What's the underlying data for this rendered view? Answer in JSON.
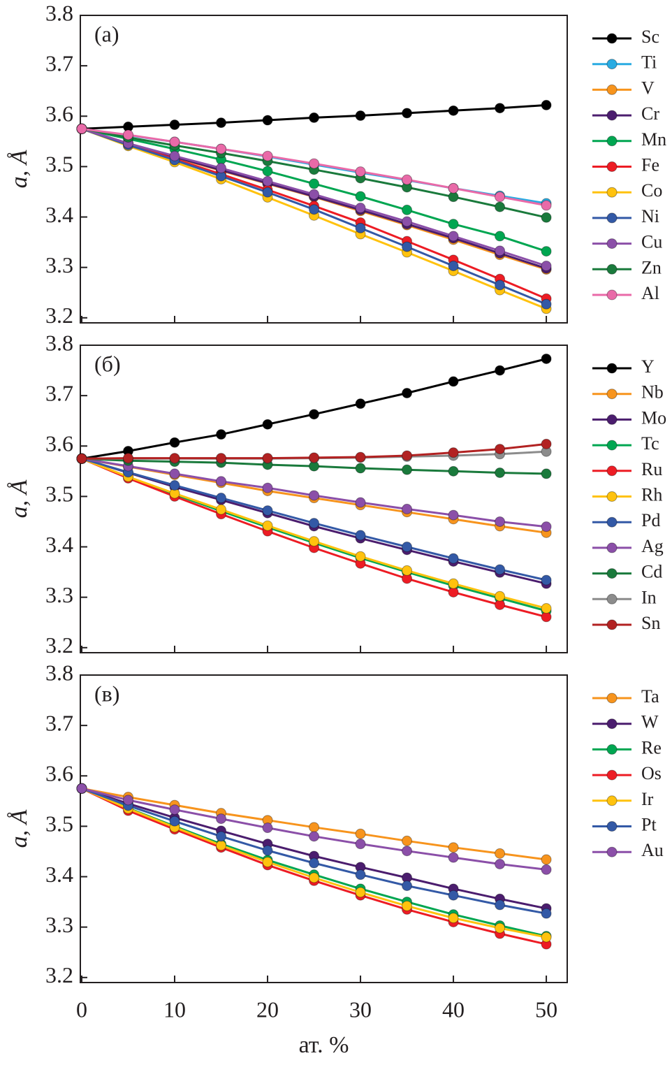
{
  "chart_data": [
    {
      "type": "line",
      "panel_label": "(а)",
      "ylabel": "a, Å",
      "x": [
        0,
        5,
        10,
        15,
        20,
        25,
        30,
        35,
        40,
        45,
        50
      ],
      "xlim": [
        -0.15,
        52.25
      ],
      "xticks": [
        0,
        10,
        20,
        30,
        40,
        50
      ],
      "ylim": [
        3.19,
        3.8
      ],
      "yticks": [
        3.2,
        3.3,
        3.4,
        3.5,
        3.6,
        3.7,
        3.8
      ],
      "series": [
        {
          "name": "Sc",
          "color": "#000000",
          "values": [
            3.575,
            3.579,
            3.583,
            3.587,
            3.592,
            3.597,
            3.601,
            3.606,
            3.611,
            3.616,
            3.622
          ]
        },
        {
          "name": "Ti",
          "color": "#29abe2",
          "values": [
            3.575,
            3.562,
            3.549,
            3.535,
            3.52,
            3.504,
            3.488,
            3.473,
            3.457,
            3.442,
            3.427
          ]
        },
        {
          "name": "V",
          "color": "#f7941d",
          "values": [
            3.575,
            3.545,
            3.518,
            3.492,
            3.466,
            3.44,
            3.412,
            3.384,
            3.355,
            3.325,
            3.296
          ]
        },
        {
          "name": "Cr",
          "color": "#4b1d6e",
          "values": [
            3.575,
            3.546,
            3.519,
            3.493,
            3.467,
            3.441,
            3.414,
            3.386,
            3.358,
            3.328,
            3.298
          ]
        },
        {
          "name": "Mn",
          "color": "#00a651",
          "values": [
            3.575,
            3.555,
            3.535,
            3.514,
            3.491,
            3.466,
            3.441,
            3.414,
            3.386,
            3.362,
            3.332
          ]
        },
        {
          "name": "Fe",
          "color": "#ed1c24",
          "values": [
            3.575,
            3.545,
            3.515,
            3.485,
            3.454,
            3.422,
            3.389,
            3.352,
            3.315,
            3.277,
            3.238
          ]
        },
        {
          "name": "Co",
          "color": "#ffc20e",
          "values": [
            3.575,
            3.541,
            3.509,
            3.475,
            3.439,
            3.403,
            3.366,
            3.33,
            3.293,
            3.255,
            3.218
          ]
        },
        {
          "name": "Ni",
          "color": "#3359a6",
          "values": [
            3.575,
            3.543,
            3.513,
            3.481,
            3.449,
            3.415,
            3.378,
            3.341,
            3.303,
            3.265,
            3.227
          ]
        },
        {
          "name": "Cu",
          "color": "#8b4fa8",
          "values": [
            3.575,
            3.546,
            3.521,
            3.497,
            3.471,
            3.445,
            3.418,
            3.391,
            3.362,
            3.333,
            3.303
          ]
        },
        {
          "name": "Zn",
          "color": "#1a7a3c",
          "values": [
            3.575,
            3.558,
            3.542,
            3.527,
            3.511,
            3.494,
            3.477,
            3.459,
            3.44,
            3.42,
            3.399
          ]
        },
        {
          "name": "Al",
          "color": "#e96aa8",
          "values": [
            3.575,
            3.563,
            3.549,
            3.535,
            3.521,
            3.506,
            3.49,
            3.474,
            3.457,
            3.44,
            3.423
          ]
        }
      ]
    },
    {
      "type": "line",
      "panel_label": "(б)",
      "ylabel": "a, Å",
      "x": [
        0,
        5,
        10,
        15,
        20,
        25,
        30,
        35,
        40,
        45,
        50
      ],
      "xlim": [
        -0.15,
        52.25
      ],
      "xticks": [
        0,
        10,
        20,
        30,
        40,
        50
      ],
      "ylim": [
        3.19,
        3.8
      ],
      "yticks": [
        3.2,
        3.3,
        3.4,
        3.5,
        3.6,
        3.7,
        3.8
      ],
      "series": [
        {
          "name": "Y",
          "color": "#000000",
          "values": [
            3.575,
            3.59,
            3.607,
            3.623,
            3.643,
            3.663,
            3.684,
            3.705,
            3.728,
            3.75,
            3.773
          ]
        },
        {
          "name": "Nb",
          "color": "#f7941d",
          "values": [
            3.575,
            3.559,
            3.543,
            3.527,
            3.511,
            3.497,
            3.483,
            3.469,
            3.455,
            3.441,
            3.428
          ]
        },
        {
          "name": "Mo",
          "color": "#4b1d6e",
          "values": [
            3.575,
            3.547,
            3.519,
            3.493,
            3.467,
            3.441,
            3.417,
            3.394,
            3.371,
            3.349,
            3.327
          ]
        },
        {
          "name": "Tc",
          "color": "#00a651",
          "values": [
            3.575,
            3.538,
            3.504,
            3.471,
            3.439,
            3.408,
            3.378,
            3.35,
            3.323,
            3.298,
            3.273
          ]
        },
        {
          "name": "Ru",
          "color": "#ed1c24",
          "values": [
            3.575,
            3.536,
            3.5,
            3.465,
            3.431,
            3.398,
            3.367,
            3.337,
            3.31,
            3.285,
            3.261
          ]
        },
        {
          "name": "Rh",
          "color": "#ffc20e",
          "values": [
            3.575,
            3.539,
            3.506,
            3.474,
            3.442,
            3.411,
            3.381,
            3.353,
            3.327,
            3.302,
            3.278
          ]
        },
        {
          "name": "Pd",
          "color": "#3359a6",
          "values": [
            3.575,
            3.548,
            3.522,
            3.497,
            3.472,
            3.447,
            3.423,
            3.4,
            3.377,
            3.355,
            3.334
          ]
        },
        {
          "name": "Ag",
          "color": "#8b4fa8",
          "values": [
            3.575,
            3.56,
            3.545,
            3.53,
            3.517,
            3.502,
            3.488,
            3.475,
            3.463,
            3.45,
            3.44
          ]
        },
        {
          "name": "Cd",
          "color": "#1a7a3c",
          "values": [
            3.575,
            3.571,
            3.569,
            3.567,
            3.563,
            3.56,
            3.556,
            3.553,
            3.55,
            3.547,
            3.545
          ]
        },
        {
          "name": "In",
          "color": "#8c8c8c",
          "values": [
            3.575,
            3.575,
            3.575,
            3.575,
            3.575,
            3.576,
            3.577,
            3.579,
            3.581,
            3.584,
            3.589
          ]
        },
        {
          "name": "Sn",
          "color": "#b22222",
          "values": [
            3.575,
            3.576,
            3.576,
            3.576,
            3.576,
            3.577,
            3.578,
            3.581,
            3.587,
            3.594,
            3.604
          ]
        }
      ]
    },
    {
      "type": "line",
      "panel_label": "(в)",
      "ylabel": "a, Å",
      "xlabel": "ат. %",
      "x": [
        0,
        5,
        10,
        15,
        20,
        25,
        30,
        35,
        40,
        45,
        50
      ],
      "xlim": [
        -0.15,
        52.25
      ],
      "xticks": [
        0,
        10,
        20,
        30,
        40,
        50
      ],
      "ylim": [
        3.19,
        3.8
      ],
      "yticks": [
        3.2,
        3.3,
        3.4,
        3.5,
        3.6,
        3.7,
        3.8
      ],
      "series": [
        {
          "name": "Ta",
          "color": "#f7941d",
          "values": [
            3.575,
            3.558,
            3.542,
            3.526,
            3.512,
            3.498,
            3.485,
            3.471,
            3.458,
            3.446,
            3.434
          ]
        },
        {
          "name": "W",
          "color": "#4b1d6e",
          "values": [
            3.575,
            3.545,
            3.517,
            3.491,
            3.465,
            3.441,
            3.419,
            3.398,
            3.376,
            3.356,
            3.337
          ]
        },
        {
          "name": "Re",
          "color": "#00a651",
          "values": [
            3.575,
            3.536,
            3.5,
            3.465,
            3.433,
            3.404,
            3.376,
            3.35,
            3.325,
            3.303,
            3.282
          ]
        },
        {
          "name": "Os",
          "color": "#ed1c24",
          "values": [
            3.575,
            3.531,
            3.494,
            3.458,
            3.423,
            3.392,
            3.363,
            3.335,
            3.31,
            3.287,
            3.266
          ]
        },
        {
          "name": "Ir",
          "color": "#ffc20e",
          "values": [
            3.575,
            3.535,
            3.498,
            3.462,
            3.429,
            3.398,
            3.369,
            3.342,
            3.318,
            3.298,
            3.28
          ]
        },
        {
          "name": "Pt",
          "color": "#3359a6",
          "values": [
            3.575,
            3.541,
            3.51,
            3.48,
            3.452,
            3.427,
            3.404,
            3.382,
            3.363,
            3.344,
            3.327
          ]
        },
        {
          "name": "Au",
          "color": "#8b4fa8",
          "values": [
            3.575,
            3.552,
            3.533,
            3.515,
            3.497,
            3.48,
            3.465,
            3.451,
            3.438,
            3.425,
            3.414
          ]
        }
      ]
    }
  ]
}
